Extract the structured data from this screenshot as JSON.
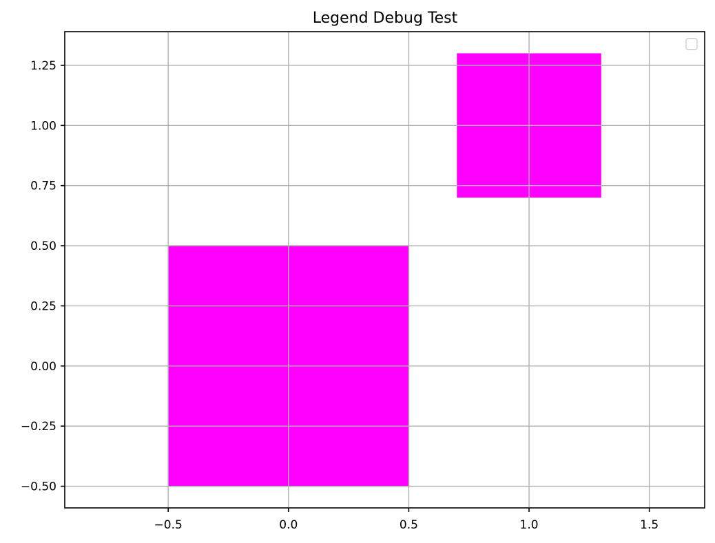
{
  "chart_data": {
    "type": "rectangle",
    "title": "Legend Debug Test",
    "xlabel": "",
    "ylabel": "",
    "xlim": [
      -0.93,
      1.73
    ],
    "ylim": [
      -0.59,
      1.39
    ],
    "xticks": [
      -0.5,
      0.0,
      0.5,
      1.0,
      1.5
    ],
    "xtick_labels": [
      "−0.5",
      "0.0",
      "0.5",
      "1.0",
      "1.5"
    ],
    "yticks": [
      -0.5,
      -0.25,
      0.0,
      0.25,
      0.5,
      0.75,
      1.0,
      1.25
    ],
    "ytick_labels": [
      "−0.50",
      "−0.25",
      "0.00",
      "0.25",
      "0.50",
      "0.75",
      "1.00",
      "1.25"
    ],
    "grid": true,
    "legend": {
      "placement": "top-right",
      "entries": []
    },
    "rectangles": [
      {
        "x0": -0.5,
        "y0": -0.5,
        "x1": 0.5,
        "y1": 0.5,
        "color": "#ff00ff"
      },
      {
        "x0": 0.7,
        "y0": 0.7,
        "x1": 1.3,
        "y1": 1.3,
        "color": "#ff00ff"
      }
    ]
  }
}
